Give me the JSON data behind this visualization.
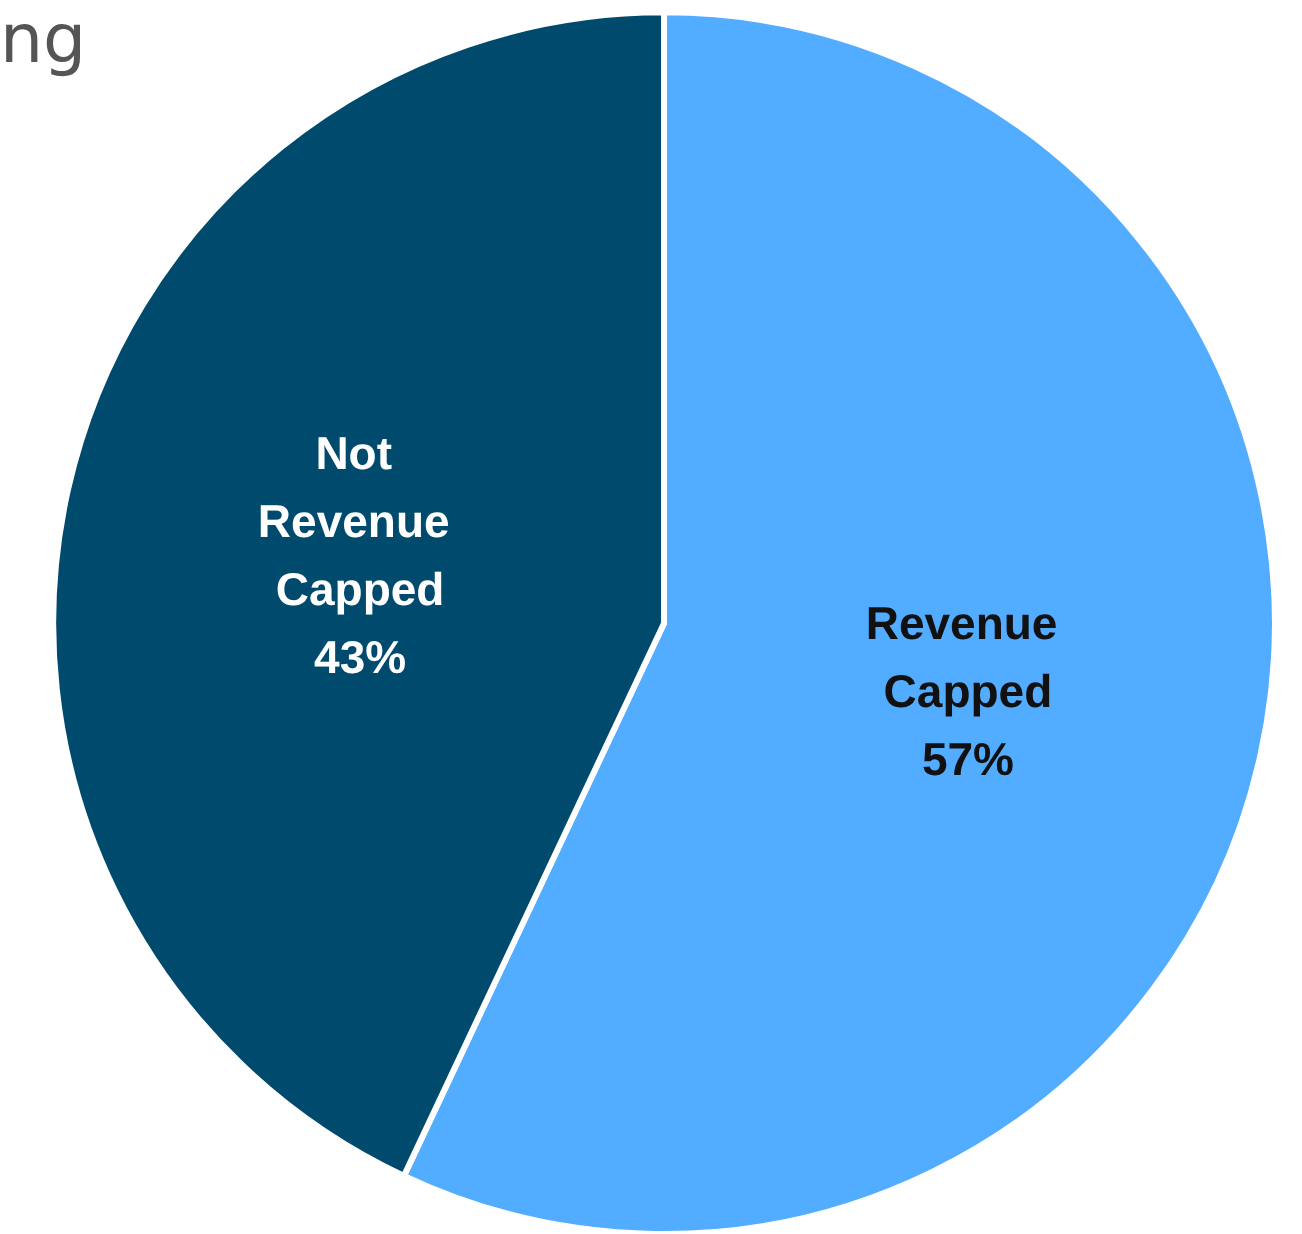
{
  "chart_data": {
    "type": "pie",
    "categories": [
      "Revenue Capped",
      "Not Revenue Capped"
    ],
    "values": [
      57,
      43
    ],
    "value_labels": [
      "57%",
      "43%"
    ],
    "colors": [
      "#52acff",
      "#004b6d"
    ],
    "annotations": [
      "ng"
    ]
  }
}
